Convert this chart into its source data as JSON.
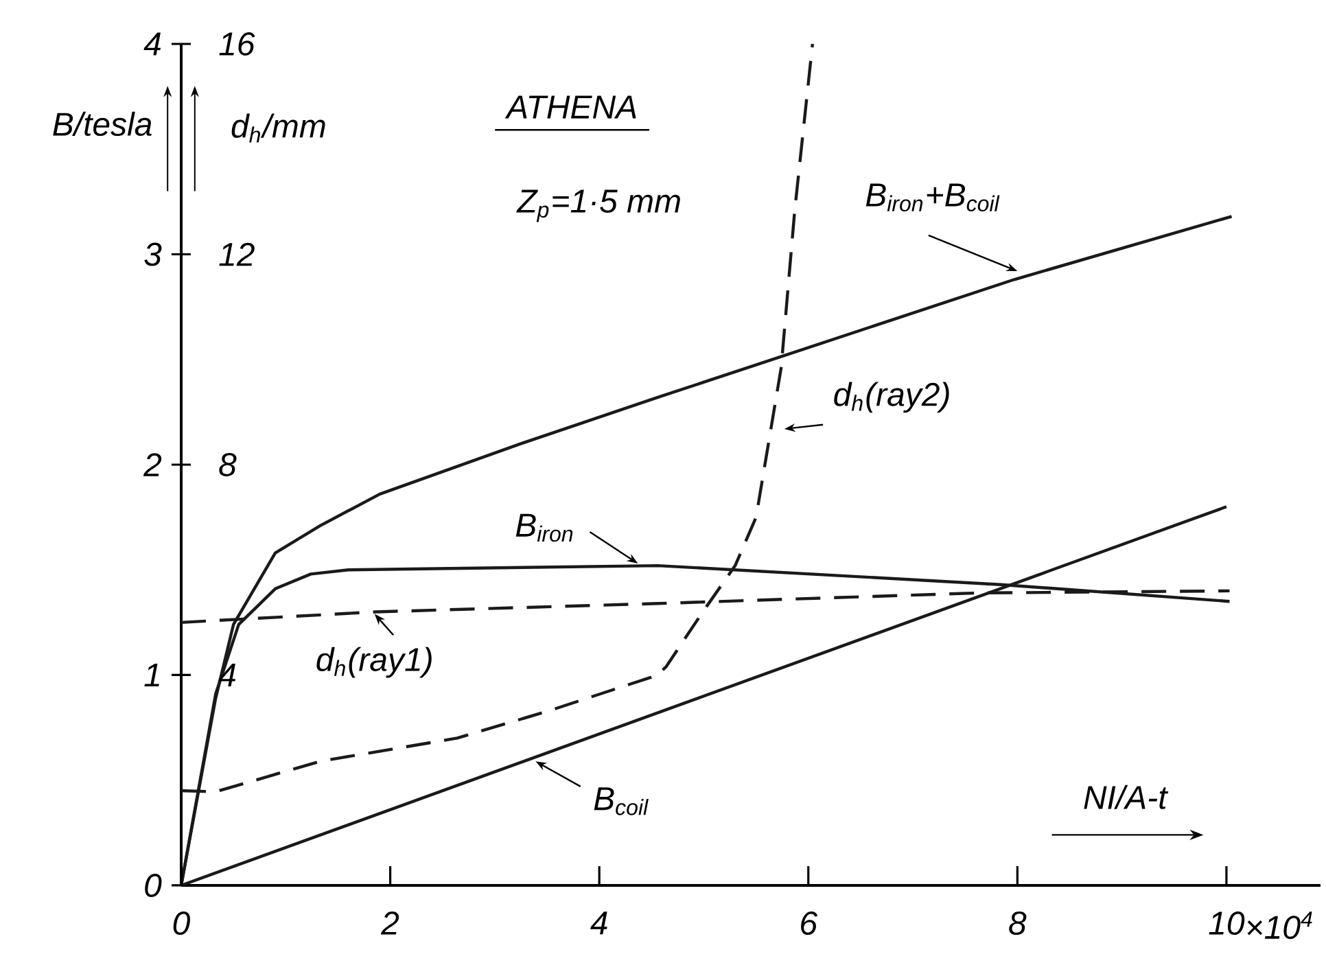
{
  "chart_data": {
    "type": "line",
    "title": "ATHENA",
    "xlabel": "NI/A-t",
    "ylabel": "B/tesla",
    "y2label": "d$_{h}$/mm",
    "annotations": [
      "Z$_{p}$=1·5 mm",
      "×10$^{4}$"
    ],
    "xlim": [
      0,
      10.9
    ],
    "xticks": [
      0,
      2,
      4,
      6,
      8,
      10
    ],
    "ylim": [
      0,
      4
    ],
    "yticks": [
      0,
      1,
      2,
      3,
      4
    ],
    "y2lim": [
      0,
      16
    ],
    "y2ticks": [
      4,
      8,
      12,
      16
    ],
    "series": [
      {
        "name": "B$_{iron}$+B$_{coil}$",
        "color": "#1a1a1a",
        "line_style": "solid",
        "x": [
          0,
          0.33,
          0.5,
          0.9,
          1.33,
          1.9,
          3.25,
          4.56,
          7.97,
          10.05
        ],
        "values": [
          0,
          0.89,
          1.24,
          1.58,
          1.71,
          1.86,
          2.1,
          2.32,
          2.88,
          3.18
        ]
      },
      {
        "name": "B$_{iron}$",
        "color": "#1a1a1a",
        "line_style": "solid",
        "x": [
          0,
          0.33,
          0.55,
          0.9,
          1.24,
          1.6,
          4.56,
          7.84,
          10.03
        ],
        "values": [
          0,
          0.91,
          1.24,
          1.41,
          1.48,
          1.5,
          1.52,
          1.43,
          1.35
        ]
      },
      {
        "name": "B$_{coil}$",
        "color": "#1a1a1a",
        "line_style": "solid",
        "x": [
          0,
          10
        ],
        "values": [
          0,
          1.8
        ]
      },
      {
        "name": "d$_{h}$(ray1)",
        "color": "#1a1a1a",
        "line_style": "dashed",
        "axis": "y2",
        "x": [
          0,
          1.86,
          4.56,
          7.62,
          10.03
        ],
        "values": [
          5.0,
          5.2,
          5.36,
          5.56,
          5.6
        ]
      },
      {
        "name": "d$_{h}$(ray2)",
        "color": "#1a1a1a",
        "line_style": "dashed",
        "axis": "y2",
        "x": [
          0,
          0.33,
          1.33,
          2.64,
          3.52,
          4.56,
          4.64,
          4.99,
          5.3,
          5.5,
          5.74,
          5.87,
          6.04
        ],
        "values": [
          1.8,
          1.78,
          2.36,
          2.8,
          3.32,
          4.0,
          4.16,
          5.2,
          6.08,
          7.0,
          9.84,
          12.84,
          16
        ]
      }
    ]
  }
}
